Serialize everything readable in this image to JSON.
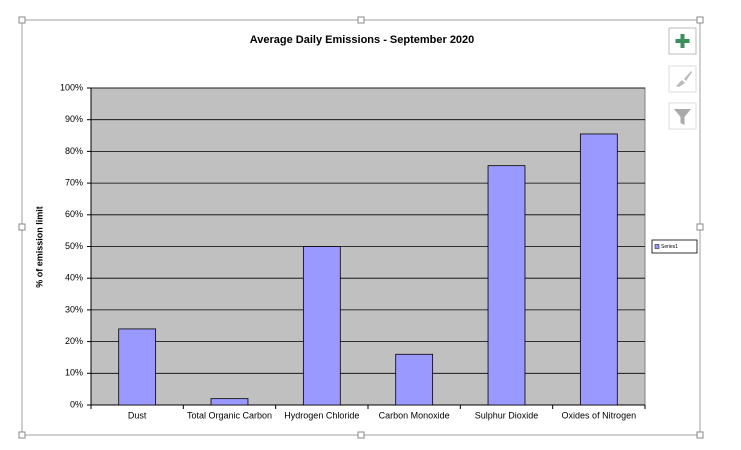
{
  "chart_data": {
    "type": "bar",
    "title": "Average Daily Emissions - September 2020",
    "ylabel": "% of emission limit",
    "categories": [
      "Dust",
      "Total Organic Carbon",
      "Hydrogen Chloride",
      "Carbon Monoxide",
      "Sulphur Dioxide",
      "Oxides of Nitrogen"
    ],
    "series": [
      {
        "name": "Series1",
        "color": "#9999ff",
        "values": [
          24,
          2,
          50,
          16,
          75.5,
          85.5
        ]
      }
    ],
    "ylim": [
      0,
      100
    ],
    "yticks": [
      {
        "value": 0,
        "label": "0%"
      },
      {
        "value": 10,
        "label": "10%"
      },
      {
        "value": 20,
        "label": "20%"
      },
      {
        "value": 30,
        "label": "30%"
      },
      {
        "value": 40,
        "label": "40%"
      },
      {
        "value": 50,
        "label": "50%"
      },
      {
        "value": 60,
        "label": "60%"
      },
      {
        "value": 70,
        "label": "70%"
      },
      {
        "value": 80,
        "label": "80%"
      },
      {
        "value": 90,
        "label": "90%"
      },
      {
        "value": 100,
        "label": "100%"
      }
    ],
    "grid": true,
    "legend": "right"
  }
}
